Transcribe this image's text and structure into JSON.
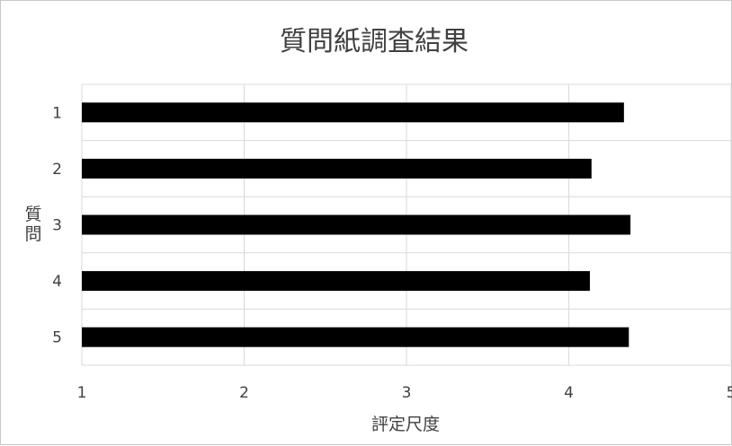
{
  "chart_data": {
    "type": "bar",
    "orientation": "horizontal",
    "title": "質問紙調査結果",
    "xlabel": "評定尺度",
    "ylabel": "質問",
    "categories": [
      "1",
      "2",
      "3",
      "4",
      "5"
    ],
    "values": [
      4.34,
      4.14,
      4.38,
      4.13,
      4.37
    ],
    "xlim": [
      1,
      5
    ],
    "xticks": [
      "1",
      "2",
      "3",
      "4",
      "5"
    ],
    "grid": true,
    "legend": "none",
    "bar_color": "#000000"
  }
}
